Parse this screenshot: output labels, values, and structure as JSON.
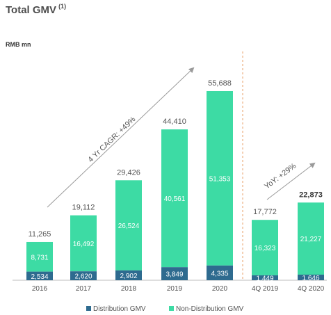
{
  "title": "Total GMV",
  "title_superscript": "(1)",
  "unit_label": "RMB mn",
  "colors": {
    "distribution": "#2e6b8f",
    "non_distribution": "#3ddba4",
    "text": "#555555",
    "divider": "#e8a06a",
    "arrow": "#9a9a9a"
  },
  "chart_data": {
    "type": "bar",
    "stacked": true,
    "categories": [
      "2016",
      "2017",
      "2018",
      "2019",
      "2020",
      "4Q 2019",
      "4Q 2020"
    ],
    "series": [
      {
        "name": "Distribution GMV",
        "values": [
          2534,
          2620,
          2902,
          3849,
          4335,
          1449,
          1646
        ],
        "labels": [
          "2,534",
          "2,620",
          "2,902",
          "3,849",
          "4,335",
          "1,449",
          "1,646"
        ]
      },
      {
        "name": "Non-Distribution GMV",
        "values": [
          8731,
          16492,
          26524,
          40561,
          51353,
          16323,
          21227
        ],
        "labels": [
          "8,731",
          "16,492",
          "26,524",
          "40,561",
          "51,353",
          "16,323",
          "21,227"
        ]
      }
    ],
    "totals": [
      11265,
      19112,
      29426,
      44410,
      55688,
      17772,
      22873
    ],
    "total_labels": [
      "11,265",
      "19,112",
      "29,426",
      "44,410",
      "55,688",
      "17,772",
      "22,873"
    ],
    "ylim": [
      0,
      60000
    ],
    "annotations": {
      "cagr": "4 Yr CAGR: +49%",
      "yoy": "YoY: +29%"
    },
    "legend_position": "bottom"
  }
}
